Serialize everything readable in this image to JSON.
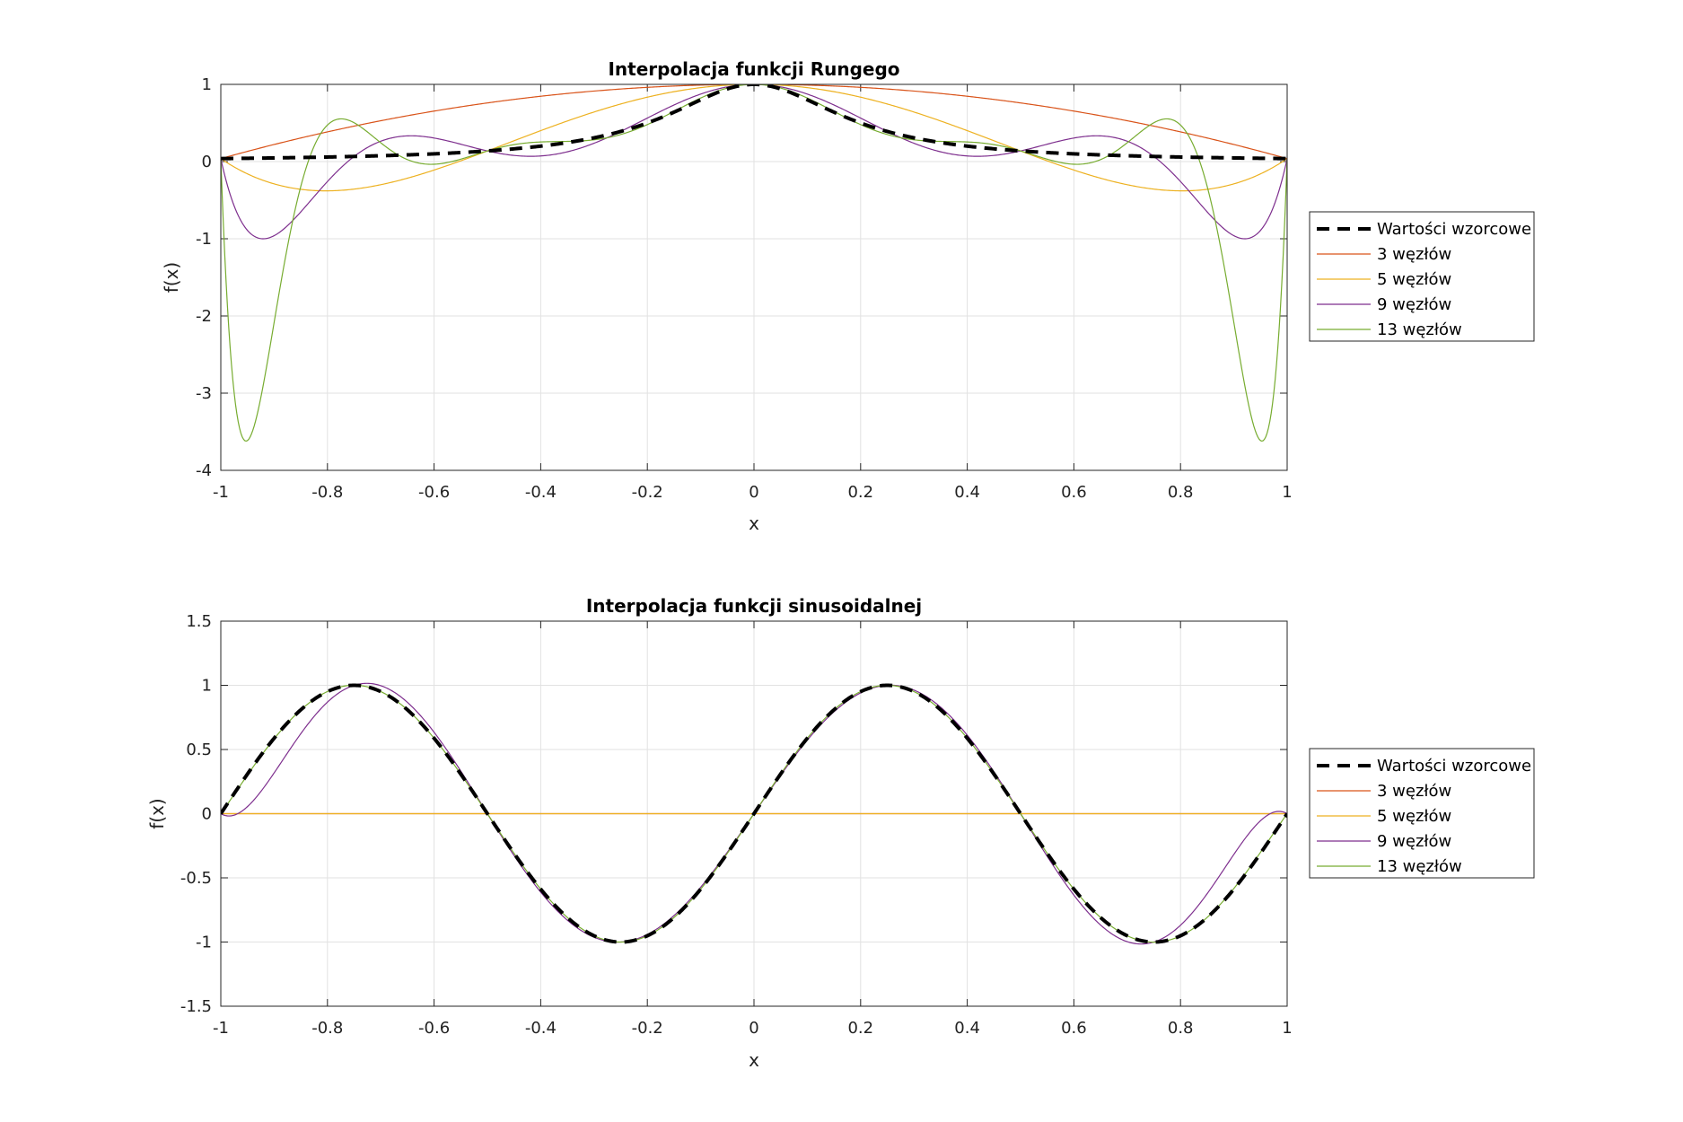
{
  "chart_data": [
    {
      "type": "line",
      "title": "Interpolacja funkcji Rungego",
      "xlabel": "x",
      "ylabel": "f(x)",
      "xlim": [
        -1,
        1
      ],
      "ylim": [
        -4,
        1
      ],
      "xticks": [
        "-1",
        "-0.8",
        "-0.6",
        "-0.4",
        "-0.2",
        "0",
        "0.2",
        "0.4",
        "0.6",
        "0.8",
        "1"
      ],
      "yticks": [
        "-4",
        "-3",
        "-2",
        "-1",
        "0",
        "1"
      ],
      "grid": true,
      "legend_position": "outside-right",
      "function": "runge",
      "series": [
        {
          "name": "Wartości wzorcowe",
          "color": "#000000",
          "style": "dashed",
          "kind": "reference"
        },
        {
          "name": "3 węzłów",
          "color": "#D95319",
          "style": "solid",
          "nodes": 3
        },
        {
          "name": "5 węzłów",
          "color": "#EDB120",
          "style": "solid",
          "nodes": 5
        },
        {
          "name": "9 węzłów",
          "color": "#7E2F8E",
          "style": "solid",
          "nodes": 9
        },
        {
          "name": "13 węzłów",
          "color": "#77AC30",
          "style": "solid",
          "nodes": 13
        }
      ]
    },
    {
      "type": "line",
      "title": "Interpolacja funkcji sinusoidalnej",
      "xlabel": "x",
      "ylabel": "f(x)",
      "xlim": [
        -1,
        1
      ],
      "ylim": [
        -1.5,
        1.5
      ],
      "xticks": [
        "-1",
        "-0.8",
        "-0.6",
        "-0.4",
        "-0.2",
        "0",
        "0.2",
        "0.4",
        "0.6",
        "0.8",
        "1"
      ],
      "yticks": [
        "-1.5",
        "-1",
        "-0.5",
        "0",
        "0.5",
        "1",
        "1.5"
      ],
      "grid": true,
      "legend_position": "outside-right",
      "function": "sin(2πx)",
      "series": [
        {
          "name": "Wartości wzorcowe",
          "color": "#000000",
          "style": "dashed",
          "kind": "reference"
        },
        {
          "name": "3 węzłów",
          "color": "#D95319",
          "style": "solid",
          "nodes": 3
        },
        {
          "name": "5 węzłów",
          "color": "#EDB120",
          "style": "solid",
          "nodes": 5
        },
        {
          "name": "9 węzłów",
          "color": "#7E2F8E",
          "style": "solid",
          "nodes": 9
        },
        {
          "name": "13 węzłów",
          "color": "#77AC30",
          "style": "solid",
          "nodes": 13
        }
      ]
    }
  ]
}
